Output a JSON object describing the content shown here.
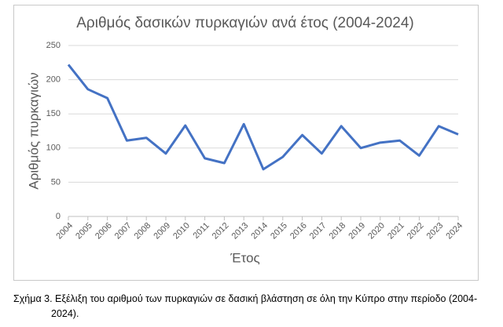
{
  "chart_data": {
    "type": "line",
    "title": "Αριθμός δασικών πυρκαγιών ανά έτος (2004-2024)",
    "x_label": "Έτος",
    "y_label": "Αριθμός πυρκαγιών",
    "categories": [
      "2004",
      "2005",
      "2006",
      "2007",
      "2008",
      "2009",
      "2010",
      "2011",
      "2012",
      "2013",
      "2014",
      "2015",
      "2016",
      "2017",
      "2018",
      "2019",
      "2020",
      "2021",
      "2022",
      "2023",
      "2024"
    ],
    "values": [
      222,
      186,
      173,
      111,
      115,
      92,
      133,
      85,
      78,
      135,
      69,
      87,
      119,
      92,
      132,
      100,
      108,
      111,
      89,
      132,
      120
    ],
    "color": "#4472c4",
    "ylim": [
      0,
      250
    ],
    "yticks": [
      0,
      50,
      100,
      150,
      200,
      250
    ],
    "grid": true
  },
  "caption": "Σχήμα 3. Εξέλιξη του αριθμού των πυρκαγιών σε δασική βλάστηση σε όλη την Κύπρο στην περίοδο (2004-2024)."
}
